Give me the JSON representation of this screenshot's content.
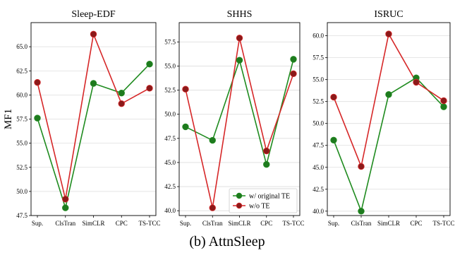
{
  "caption": "(b) AttnSleep",
  "colors": {
    "original": "#1f8b1f",
    "wo": "#d62728",
    "original_marker": "#1e7a1e",
    "wo_marker": "#8b1a1a"
  },
  "chart_data": [
    {
      "type": "line",
      "title": "Sleep-EDF",
      "xlabel": "",
      "ylabel": "MF1",
      "categories": [
        "Sup.",
        "ClsTran",
        "SimCLR",
        "CPC",
        "TS-TCC"
      ],
      "ylim": [
        47.5,
        67.5
      ],
      "yticks": [
        "47.5",
        "50.0",
        "52.5",
        "55.0",
        "57.5",
        "60.0",
        "62.5",
        "65.0"
      ],
      "grid": true,
      "series": [
        {
          "name": "w/ original TE",
          "values": [
            57.6,
            48.3,
            61.2,
            60.2,
            63.2
          ]
        },
        {
          "name": "w/o TE",
          "values": [
            61.3,
            49.2,
            66.3,
            59.1,
            60.7
          ]
        }
      ]
    },
    {
      "type": "line",
      "title": "SHHS",
      "xlabel": "",
      "ylabel": "",
      "categories": [
        "Sup.",
        "ClsTran",
        "SimCLR",
        "CPC",
        "TS-TCC"
      ],
      "ylim": [
        39.5,
        59.5
      ],
      "yticks": [
        "40.0",
        "42.5",
        "45.0",
        "47.5",
        "50.0",
        "52.5",
        "55.0",
        "57.5"
      ],
      "grid": true,
      "legend": "lower-right",
      "series": [
        {
          "name": "w/ original TE",
          "values": [
            48.7,
            47.3,
            55.6,
            44.8,
            55.7
          ]
        },
        {
          "name": "w/o TE",
          "values": [
            52.6,
            40.3,
            57.9,
            46.2,
            54.2
          ]
        }
      ]
    },
    {
      "type": "line",
      "title": "ISRUC",
      "xlabel": "",
      "ylabel": "",
      "categories": [
        "Sup.",
        "ClsTran",
        "SimCLR",
        "CPC",
        "TS-TCC"
      ],
      "ylim": [
        39.5,
        61.5
      ],
      "yticks": [
        "40.0",
        "42.5",
        "45.0",
        "47.5",
        "50.0",
        "52.5",
        "55.0",
        "57.5",
        "60.0"
      ],
      "grid": true,
      "series": [
        {
          "name": "w/ original TE",
          "values": [
            48.1,
            40.0,
            53.3,
            55.2,
            51.9
          ]
        },
        {
          "name": "w/o TE",
          "values": [
            53.0,
            45.1,
            60.2,
            54.7,
            52.6
          ]
        }
      ]
    }
  ]
}
